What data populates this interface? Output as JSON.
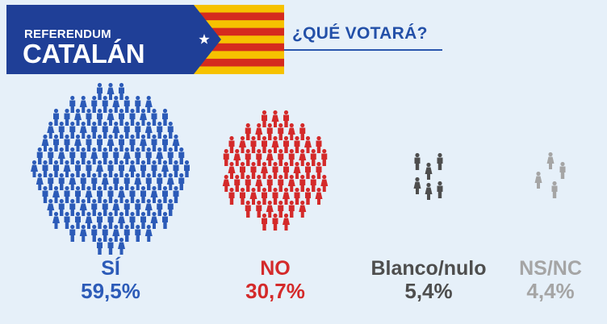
{
  "header": {
    "kicker": "REFERENDUM",
    "headline": "CATALÁN",
    "question": "¿QUÉ VOTARÁ?"
  },
  "colors": {
    "banner_blue": "#1f3f97",
    "flag_yellow": "#f6c200",
    "flag_red": "#d52b1e",
    "question_blue": "#2350a8",
    "background": "#e6f0f9"
  },
  "chart_data": {
    "type": "pictogram",
    "categories": [
      "SÍ",
      "NO",
      "Blanco/nulo",
      "NS/NC"
    ],
    "values": [
      59.5,
      30.7,
      5.4,
      4.4
    ],
    "value_labels": [
      "59,5%",
      "30,7%",
      "5,4%",
      "4,4%"
    ],
    "colors": [
      "#2c5bb8",
      "#d42a2a",
      "#4e4e4e",
      "#a5a5a5"
    ],
    "icon": "person-icon"
  }
}
